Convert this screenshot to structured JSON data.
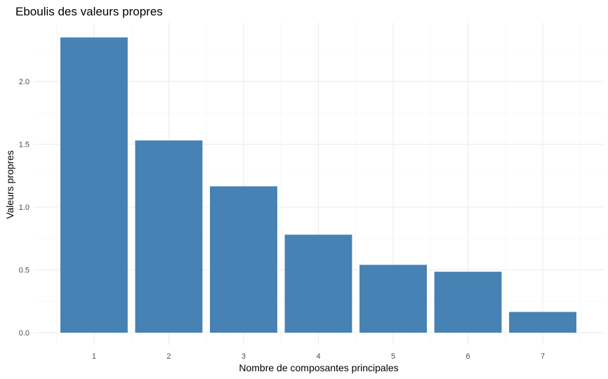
{
  "chart_data": {
    "type": "bar",
    "title": "Eboulis des valeurs propres",
    "xlabel": "Nombre de composantes principales",
    "ylabel": "Valeurs propres",
    "categories": [
      "1",
      "2",
      "3",
      "4",
      "5",
      "6",
      "7"
    ],
    "values": [
      2.35,
      1.53,
      1.165,
      0.78,
      0.54,
      0.485,
      0.165
    ],
    "ylim": [
      0,
      2.45
    ],
    "yticks": [
      "0.0",
      "0.5",
      "1.0",
      "1.5",
      "2.0"
    ],
    "bar_color": "#4682B4",
    "grid": true,
    "legend": "none"
  }
}
